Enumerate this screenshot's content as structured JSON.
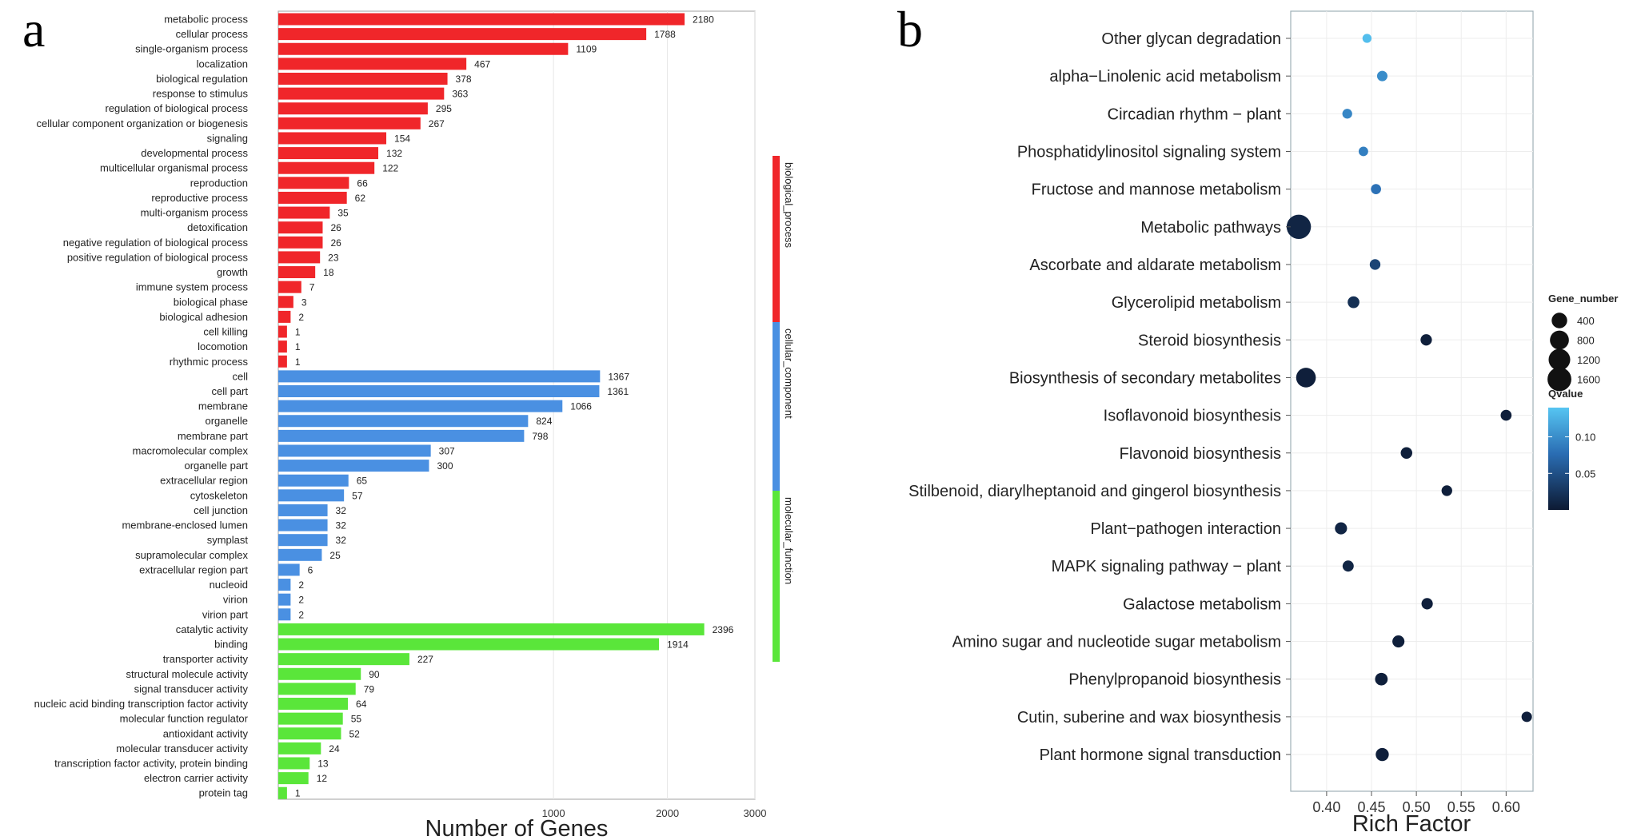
{
  "panel_a_label": "a",
  "panel_b_label": "b",
  "chart_data": [
    {
      "type": "bar",
      "orientation": "horizontal",
      "xscale": "sqrt",
      "xlabel": "Number of Genes",
      "xlim": [
        0,
        3000
      ],
      "xticks": [
        1000,
        2000,
        3000
      ],
      "grid": true,
      "categories": [
        "metabolic process",
        "cellular process",
        "single-organism process",
        "localization",
        "biological regulation",
        "response to stimulus",
        "regulation of biological process",
        "cellular component organization or biogenesis",
        "signaling",
        "developmental process",
        "multicellular organismal process",
        "reproduction",
        "reproductive process",
        "multi-organism process",
        "detoxification",
        "negative regulation of biological process",
        "positive regulation of biological process",
        "growth",
        "immune system process",
        "biological phase",
        "biological adhesion",
        "cell killing",
        "locomotion",
        "rhythmic process",
        "cell",
        "cell part",
        "membrane",
        "organelle",
        "membrane part",
        "macromolecular complex",
        "organelle part",
        "extracellular region",
        "cytoskeleton",
        "cell junction",
        "membrane-enclosed lumen",
        "symplast",
        "supramolecular complex",
        "extracellular region part",
        "nucleoid",
        "virion",
        "virion part",
        "catalytic activity",
        "binding",
        "transporter activity",
        "structural molecule activity",
        "signal transducer activity",
        "nucleic acid binding transcription factor activity",
        "molecular function regulator",
        "antioxidant activity",
        "molecular transducer activity",
        "transcription factor activity, protein binding",
        "electron carrier activity",
        "protein tag"
      ],
      "values": [
        2180,
        1788,
        1109,
        467,
        378,
        363,
        295,
        267,
        154,
        132,
        122,
        66,
        62,
        35,
        26,
        26,
        23,
        18,
        7,
        3,
        2,
        1,
        1,
        1,
        1367,
        1361,
        1066,
        824,
        798,
        307,
        300,
        65,
        57,
        32,
        32,
        32,
        25,
        6,
        2,
        2,
        2,
        2396,
        1914,
        227,
        90,
        79,
        64,
        55,
        52,
        24,
        13,
        12,
        1
      ],
      "groups": [
        {
          "name": "biological_process",
          "color": "#f0262a",
          "count": 24
        },
        {
          "name": "cellular_component",
          "color": "#4a90e2",
          "count": 17
        },
        {
          "name": "molecular_function",
          "color": "#5ae63a",
          "count": 12
        }
      ]
    },
    {
      "type": "scatter",
      "xlabel": "Rich Factor",
      "xlim": [
        0.36,
        0.63
      ],
      "xticks": [
        "0.40",
        "0.45",
        "0.50",
        "0.55",
        "0.60"
      ],
      "grid": true,
      "categories": [
        "Other glycan degradation",
        "alpha−Linolenic acid metabolism",
        "Circadian rhythm − plant",
        "Phosphatidylinositol signaling system",
        "Fructose and mannose metabolism",
        "Metabolic pathways",
        "Ascorbate and aldarate metabolism",
        "Glycerolipid metabolism",
        "Steroid biosynthesis",
        "Biosynthesis of secondary metabolites",
        "Isoflavonoid biosynthesis",
        "Flavonoid biosynthesis",
        "Stilbenoid, diarylheptanoid and gingerol biosynthesis",
        "Plant−pathogen interaction",
        "MAPK signaling pathway − plant",
        "Galactose metabolism",
        "Amino sugar and nucleotide sugar metabolism",
        "Phenylpropanoid biosynthesis",
        "Cutin, suberine and wax biosynthesis",
        "Plant hormone signal transduction"
      ],
      "rich_factor": [
        0.445,
        0.462,
        0.423,
        0.441,
        0.455,
        0.369,
        0.454,
        0.43,
        0.511,
        0.377,
        0.6,
        0.489,
        0.534,
        0.416,
        0.424,
        0.512,
        0.48,
        0.461,
        0.623,
        0.462
      ],
      "gene_number": [
        20,
        60,
        40,
        30,
        50,
        1700,
        70,
        120,
        100,
        900,
        80,
        110,
        70,
        140,
        90,
        100,
        140,
        170,
        60,
        200
      ],
      "qvalue": [
        0.135,
        0.1,
        0.095,
        0.09,
        0.08,
        0.01,
        0.04,
        0.02,
        0.005,
        0.005,
        0.005,
        0.005,
        0.005,
        0.01,
        0.01,
        0.005,
        0.005,
        0.005,
        0.005,
        0.005
      ],
      "legend": {
        "placement": "right",
        "size_title": "Gene_number",
        "size_values": [
          "400",
          "800",
          "1200",
          "1600"
        ],
        "color_title": "Qvalue",
        "color_ticks": [
          {
            "label": "0.10",
            "value": 0.1
          },
          {
            "label": "0.05",
            "value": 0.05
          }
        ],
        "color_range": [
          0.0,
          0.14
        ],
        "color_low": "#0d1a33",
        "color_high": "#56c5f2"
      }
    }
  ]
}
